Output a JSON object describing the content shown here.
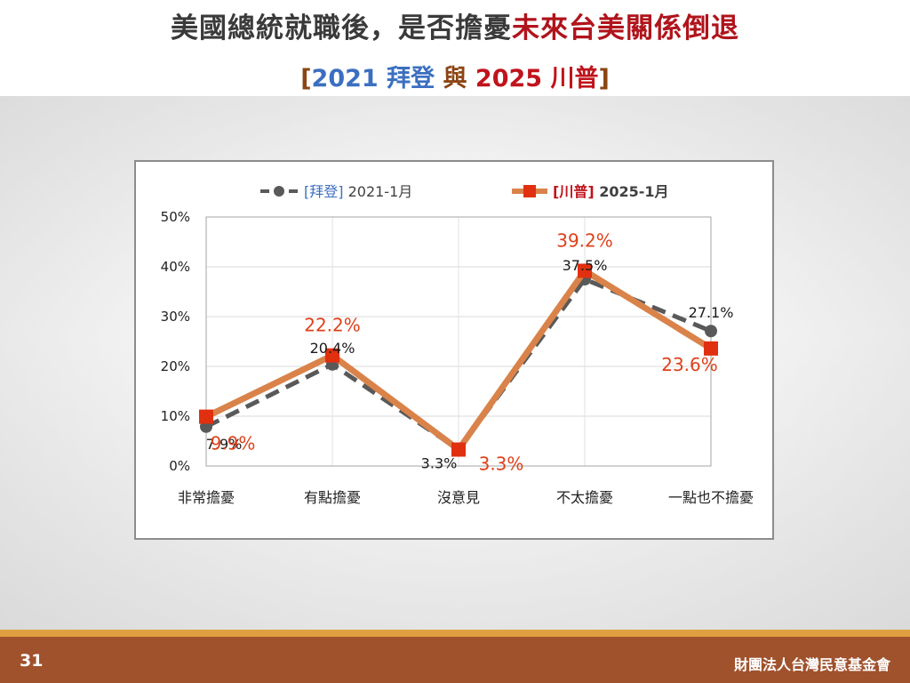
{
  "header": {
    "title_part1": "美國總統就職後，是否擔憂",
    "title_part2": "未來台美關係倒退",
    "subtitle_open": "[",
    "subtitle_biden": "2021 拜登",
    "subtitle_mid": " 與 ",
    "subtitle_trump": "2025 川普",
    "subtitle_close": "]"
  },
  "chart_data": {
    "type": "line",
    "categories": [
      "非常擔憂",
      "有點擔憂",
      "沒意見",
      "不太擔憂",
      "一點也不擔憂"
    ],
    "y_ticks": [
      "0%",
      "10%",
      "20%",
      "30%",
      "40%",
      "50%"
    ],
    "ylim": [
      0,
      50
    ],
    "series": [
      {
        "name_bracket": "[拜登]",
        "name_date": "2021-1月",
        "values": [
          7.9,
          20.4,
          3.3,
          37.5,
          27.1
        ],
        "labels": [
          "7.9%",
          "20.4%",
          "3.3%",
          "37.5%",
          "27.1%"
        ],
        "color": "#595959",
        "style": "dashed-circle"
      },
      {
        "name_bracket": "[川普]",
        "name_date": "2025-1月",
        "values": [
          9.9,
          22.2,
          3.3,
          39.2,
          23.6
        ],
        "labels": [
          "9.9%",
          "22.2%",
          "3.3%",
          "39.2%",
          "23.6%"
        ],
        "color": "#d9834a",
        "marker_color": "#e0300f",
        "label_color": "#e0401a",
        "style": "solid-square"
      }
    ],
    "legend_label_color": "#3b6fc0",
    "legend_trump_color": "#c0141c",
    "legend_placement": "top"
  },
  "footer": {
    "page_number": "31",
    "organization": "財團法人台灣民意基金會"
  }
}
